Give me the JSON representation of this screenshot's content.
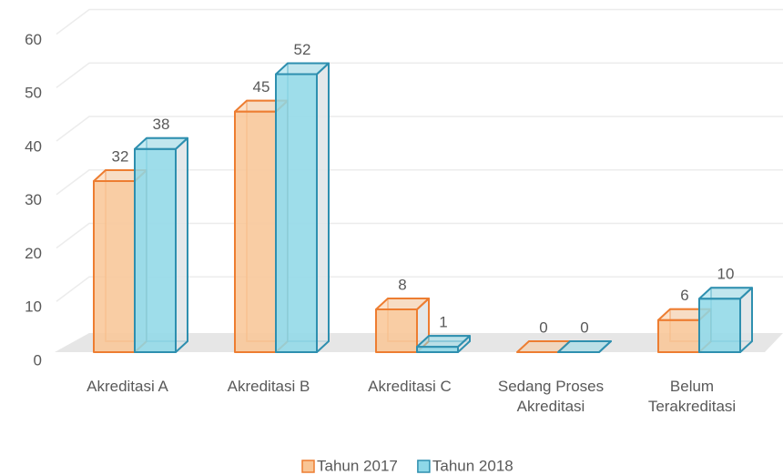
{
  "chart_data": {
    "type": "bar3d",
    "categories": [
      "Akreditasi A",
      "Akreditasi B",
      "Akreditasi C",
      "Sedang Proses Akreditasi",
      "Belum Terakreditasi"
    ],
    "series": [
      {
        "name": "Tahun 2017",
        "color": "#ED7D31",
        "fill": "#F9C595",
        "values": [
          32,
          45,
          8,
          0,
          6
        ]
      },
      {
        "name": "Tahun 2018",
        "color": "#2E8FAF",
        "fill": "#8ED8E8",
        "values": [
          38,
          52,
          1,
          0,
          10
        ]
      }
    ],
    "ylim": [
      0,
      60
    ],
    "yticks": [
      0,
      10,
      20,
      30,
      40,
      50,
      60
    ],
    "grid": true,
    "legend": "bottom"
  }
}
